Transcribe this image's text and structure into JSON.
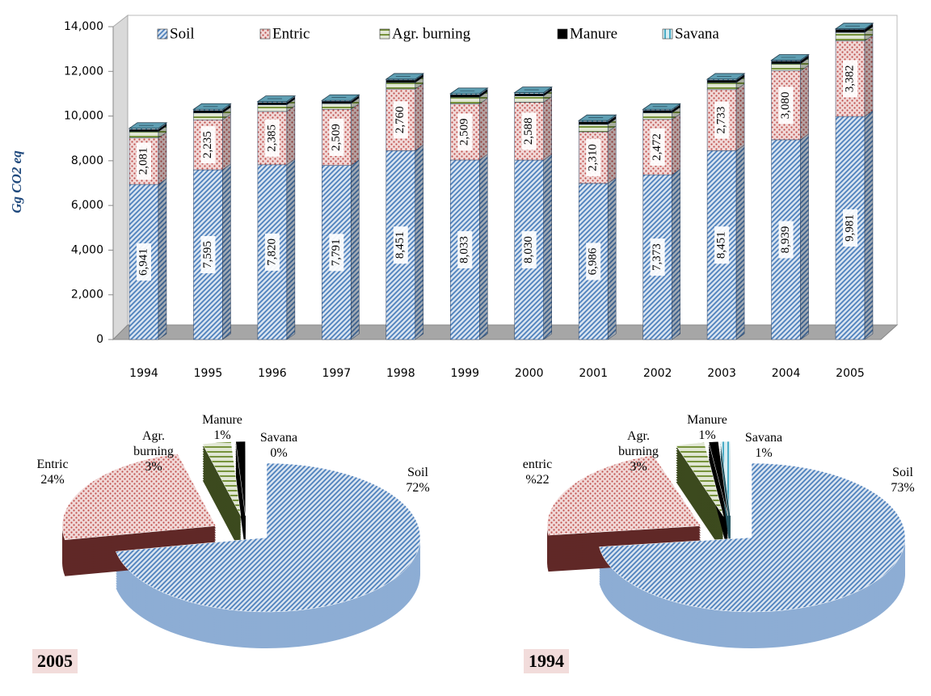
{
  "chart_data": [
    {
      "type": "bar",
      "stacked": true,
      "ylabel": "Gg CO2 eq",
      "categories": [
        "1994",
        "1995",
        "1996",
        "1997",
        "1998",
        "1999",
        "2000",
        "2001",
        "2002",
        "2003",
        "2004",
        "2005"
      ],
      "series": [
        {
          "name": "Soil",
          "color": "#4f81bd",
          "pattern": "hatch",
          "values": [
            6941,
            7595,
            7820,
            7791,
            8451,
            8033,
            8030,
            6986,
            7373,
            8451,
            8939,
            9981
          ],
          "value_labels": [
            "6,941",
            "7,595",
            "7,820",
            "7,791",
            "8,451",
            "8,033",
            "8,030",
            "6,986",
            "7,373",
            "8,451",
            "8,939",
            "9,981"
          ]
        },
        {
          "name": "Entric",
          "color": "#c0504d",
          "pattern": "dots",
          "values": [
            2081,
            2235,
            2385,
            2509,
            2760,
            2509,
            2588,
            2310,
            2472,
            2733,
            3080,
            3382
          ],
          "value_labels": [
            "2,081",
            "2,235",
            "2,385",
            "2,509",
            "2,760",
            "2,509",
            "2,588",
            "2,310",
            "2,472",
            "2,733",
            "3,080",
            "3,382"
          ]
        },
        {
          "name": "Agr. burning",
          "color": "#77933c",
          "pattern": "hlines",
          "values": [
            280,
            310,
            300,
            260,
            290,
            300,
            280,
            330,
            300,
            310,
            320,
            380
          ]
        },
        {
          "name": "Manure",
          "color": "#000000",
          "pattern": "solid",
          "values": [
            100,
            110,
            100,
            100,
            110,
            110,
            100,
            120,
            110,
            110,
            120,
            130
          ]
        },
        {
          "name": "Savana",
          "color": "#4bacc6",
          "pattern": "vlines",
          "values": [
            50,
            50,
            45,
            40,
            40,
            50,
            50,
            50,
            45,
            46,
            40,
            30
          ]
        }
      ],
      "ylim": [
        0,
        14000
      ],
      "yticks": [
        0,
        {
          "value": 2000,
          "label": "2,000"
        },
        {
          "value": 4000,
          "label": "4,000"
        },
        {
          "value": 6000,
          "label": "6,000"
        },
        {
          "value": 8000,
          "label": "8,000"
        },
        {
          "value": 10000,
          "label": "10,000"
        },
        {
          "value": 12000,
          "label": "12,000"
        },
        {
          "value": 14000,
          "label": "14,000"
        }
      ],
      "grid": false,
      "legend": "top"
    },
    {
      "type": "pie",
      "title": "2005",
      "categories": [
        "Soil",
        "Entric",
        "Agr. burning",
        "Manure",
        "Savana"
      ],
      "values": [
        72,
        24,
        3,
        1,
        0
      ],
      "value_labels": [
        "72%",
        "24%",
        "3%",
        "1%",
        "0%"
      ],
      "colors": [
        "#4f81bd",
        "#c0504d",
        "#77933c",
        "#000000",
        "#4bacc6"
      ],
      "patterns": [
        "hatch",
        "dots",
        "hlines",
        "solid",
        "vlines"
      ]
    },
    {
      "type": "pie",
      "title": "1994",
      "categories": [
        "Soil",
        "entric",
        "Agr. burning",
        "Manure",
        "Savana"
      ],
      "values": [
        73,
        22,
        3,
        1,
        1
      ],
      "value_labels": [
        "73%",
        "%22",
        "3%",
        "1%",
        "1%"
      ],
      "colors": [
        "#4f81bd",
        "#c0504d",
        "#77933c",
        "#000000",
        "#4bacc6"
      ],
      "patterns": [
        "hatch",
        "dots",
        "hlines",
        "solid",
        "vlines"
      ]
    }
  ]
}
